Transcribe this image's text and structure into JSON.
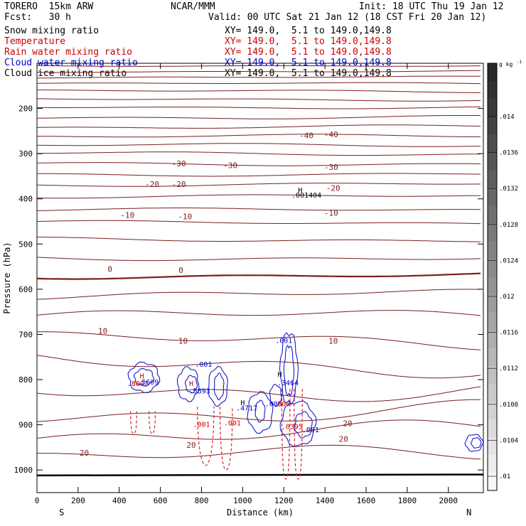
{
  "header": {
    "model": "TORERO  15km ARW",
    "center": "NCAR/MMM",
    "init": "Init: 18 UTC Thu 19 Jan 12",
    "fcst": "Fcst:   30 h",
    "valid": "Valid: 00 UTC Sat 21 Jan 12 (18 CST Fri 20 Jan 12)"
  },
  "fields": [
    {
      "name": "Snow mixing ratio",
      "color": "#000000",
      "xy": "XY= 149.0,  5.1 to 149.0,149.8"
    },
    {
      "name": "Temperature",
      "color": "#cc0000",
      "xy": "XY= 149.0,  5.1 to 149.0,149.8"
    },
    {
      "name": "Rain water mixing ratio",
      "color": "#cc0000",
      "xy": "XY= 149.0,  5.1 to 149.0,149.8"
    },
    {
      "name": "Cloud water mixing ratio",
      "color": "#0000cc",
      "xy": "XY= 149.0,  5.1 to 149.0,149.8"
    },
    {
      "name": "Cloud ice mixing ratio",
      "color": "#000000",
      "xy": "XY= 149.0,  5.1 to 149.0,149.8"
    }
  ],
  "chart_data": {
    "type": "contour-cross-section",
    "xlabel": "Distance (km)",
    "ylabel": "Pressure (hPa)",
    "xlim": [
      0,
      2170
    ],
    "ylim": [
      1050,
      100
    ],
    "x_ticks": [
      0,
      200,
      400,
      600,
      800,
      1000,
      1200,
      1400,
      1600,
      1800,
      2000
    ],
    "y_ticks": [
      200,
      300,
      400,
      500,
      600,
      700,
      800,
      900,
      1000
    ],
    "x_end_labels": {
      "left": "S",
      "right": "N"
    },
    "colorbar": {
      "unit": "g kg",
      "unit_sup": "-1",
      "ticks": [
        ".014",
        ".0136",
        ".0132",
        ".0128",
        ".0124",
        ".012",
        ".0116",
        ".0112",
        ".0108",
        ".0104",
        ".01"
      ]
    },
    "temperature_levels": [
      {
        "p": 105,
        "var": 2
      },
      {
        "p": 118,
        "var": 2
      },
      {
        "p": 131,
        "var": 2
      },
      {
        "p": 145,
        "var": 2
      },
      {
        "p": 162,
        "var": 3
      },
      {
        "p": 180,
        "var": 3
      },
      {
        "p": 197,
        "var": 3
      },
      {
        "p": 219,
        "var": 4
      },
      {
        "p": 241,
        "var": 4
      },
      {
        "p": 262,
        "var": 4
      },
      {
        "p": 282,
        "var": 4
      },
      {
        "p": 300,
        "var": 4
      },
      {
        "p": 322,
        "var": 4
      },
      {
        "p": 345,
        "var": 4
      },
      {
        "p": 368,
        "var": 4
      },
      {
        "p": 395,
        "var": 4
      },
      {
        "p": 425,
        "var": 4
      },
      {
        "p": 453,
        "var": 4
      },
      {
        "p": 490,
        "var": 5
      },
      {
        "p": 530,
        "var": 6
      },
      {
        "p": 570,
        "var": 6,
        "bold": true
      },
      {
        "p": 612,
        "var": 10
      },
      {
        "p": 660,
        "var": 14
      },
      {
        "p": 715,
        "var": 18
      },
      {
        "p": 765,
        "var": 25
      },
      {
        "p": 820,
        "var": 25
      },
      {
        "p": 870,
        "var": 25
      },
      {
        "p": 920,
        "var": 25
      },
      {
        "p": 970,
        "var": 20
      }
    ],
    "temperature_labels": [
      {
        "label": "-40",
        "x": 1310,
        "p": 260
      },
      {
        "label": "-40",
        "x": 1430,
        "p": 257
      },
      {
        "label": "-30",
        "x": 690,
        "p": 322
      },
      {
        "label": "-30",
        "x": 940,
        "p": 326
      },
      {
        "label": "-30",
        "x": 1430,
        "p": 330
      },
      {
        "label": "-20",
        "x": 560,
        "p": 367
      },
      {
        "label": "-20",
        "x": 690,
        "p": 367
      },
      {
        "label": "-20",
        "x": 1440,
        "p": 376
      },
      {
        "label": "-10",
        "x": 440,
        "p": 436
      },
      {
        "label": "-10",
        "x": 720,
        "p": 439
      },
      {
        "label": "-10",
        "x": 1430,
        "p": 431
      },
      {
        "label": "0",
        "x": 355,
        "p": 555
      },
      {
        "label": "0",
        "x": 700,
        "p": 558
      },
      {
        "label": "10",
        "x": 320,
        "p": 692
      },
      {
        "label": "10",
        "x": 710,
        "p": 714
      },
      {
        "label": "10",
        "x": 1440,
        "p": 714
      },
      {
        "label": "20",
        "x": 230,
        "p": 962
      },
      {
        "label": "20",
        "x": 750,
        "p": 945
      },
      {
        "label": "20",
        "x": 1490,
        "p": 931
      },
      {
        "label": "20",
        "x": 1510,
        "p": 897
      }
    ],
    "rain_plumes": [
      {
        "x": 470,
        "w": 30,
        "top": 870,
        "bottom": 920
      },
      {
        "x": 560,
        "w": 30,
        "top": 870,
        "bottom": 920
      },
      {
        "x": 820,
        "w": 80,
        "top": 860,
        "bottom": 990
      },
      {
        "x": 920,
        "w": 60,
        "top": 860,
        "bottom": 1000
      },
      {
        "x": 1210,
        "w": 40,
        "top": 820,
        "bottom": 1020
      },
      {
        "x": 1270,
        "w": 40,
        "top": 820,
        "bottom": 1020
      }
    ],
    "annotations": [
      {
        "label": "H",
        "x": 1280,
        "p": 380,
        "color": "#000000"
      },
      {
        "label": ".001404",
        "x": 1310,
        "p": 391,
        "color": "#000000"
      },
      {
        "label": ".001",
        "x": 1200,
        "p": 713,
        "color": "#0000cc"
      },
      {
        "label": ".001",
        "x": 810,
        "p": 765,
        "color": "#0000cc"
      },
      {
        "label": "H",
        "x": 510,
        "p": 791,
        "color": "#cc0000"
      },
      {
        "label": ".5609",
        "x": 540,
        "p": 805,
        "color": "#0000cc"
      },
      {
        "label": ".8002",
        "x": 490,
        "p": 808,
        "color": "#cc0000"
      },
      {
        "label": "H",
        "x": 750,
        "p": 808,
        "color": "#cc0000"
      },
      {
        "label": ".5893",
        "x": 790,
        "p": 824,
        "color": "#0000cc"
      },
      {
        "label": "H",
        "x": 1180,
        "p": 787,
        "color": "#000000"
      },
      {
        "label": ".3464",
        "x": 1220,
        "p": 806,
        "color": "#0000cc"
      },
      {
        "label": "H",
        "x": 1000,
        "p": 850,
        "color": "#000000"
      },
      {
        "label": ".4717",
        "x": 1020,
        "p": 862,
        "color": "#0000cc"
      },
      {
        "label": ".000",
        "x": 1150,
        "p": 853,
        "color": "#0000cc"
      },
      {
        "label": ".000",
        "x": 1190,
        "p": 853,
        "color": "#cc0000"
      },
      {
        "label": ".001",
        "x": 800,
        "p": 898,
        "color": "#cc0000"
      },
      {
        "label": ".001",
        "x": 950,
        "p": 895,
        "color": "#cc0000"
      },
      {
        "label": ".0395",
        "x": 1240,
        "p": 903,
        "color": "#cc0000"
      },
      {
        "label": ".001",
        "x": 1330,
        "p": 910,
        "color": "#0000cc"
      }
    ]
  }
}
